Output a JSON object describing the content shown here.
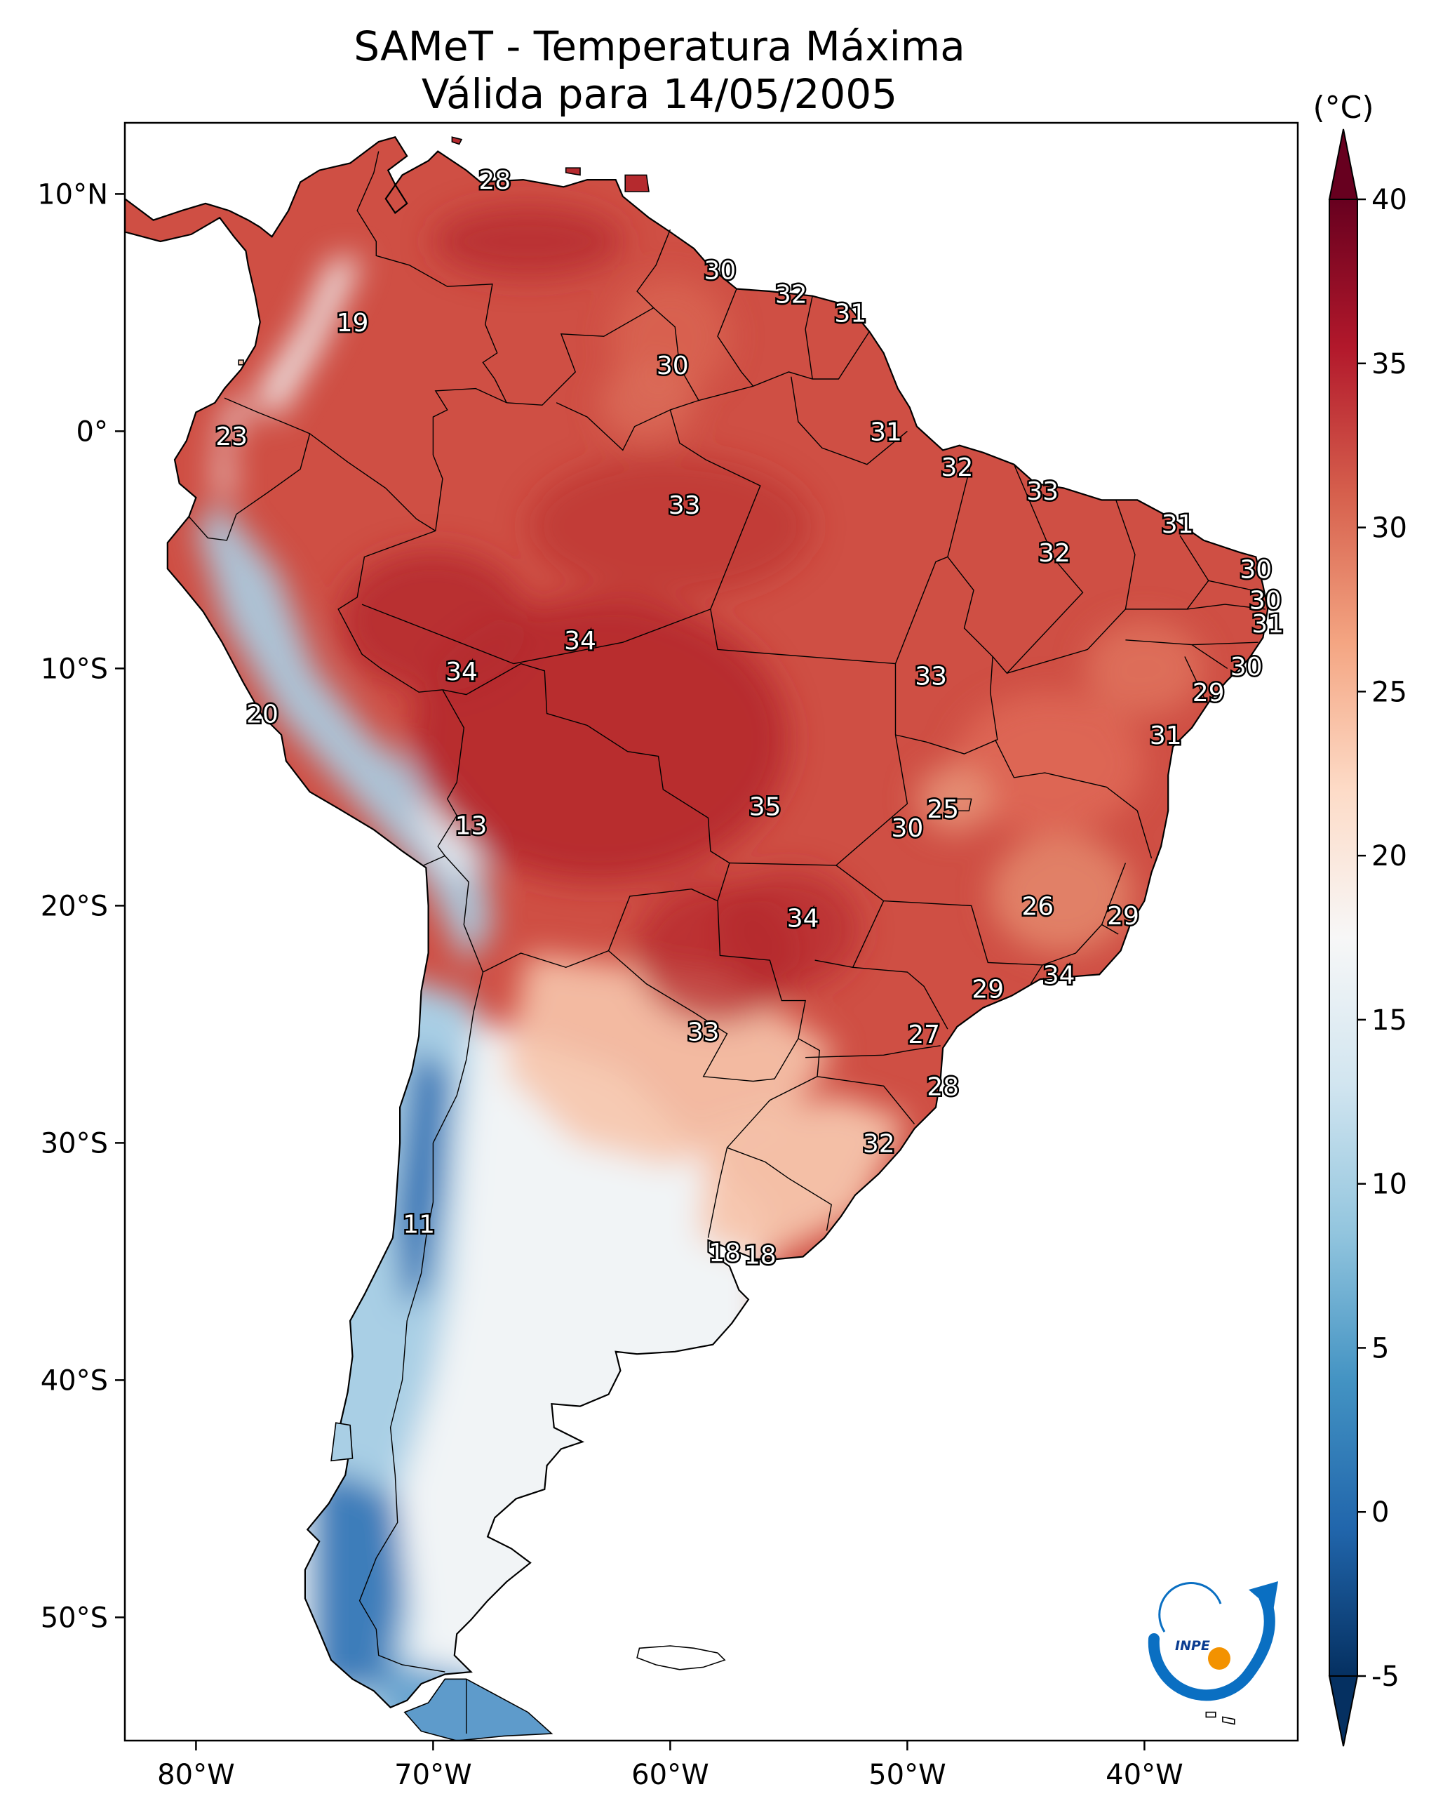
{
  "title": {
    "line1": "SAMeT - Temperatura Máxima",
    "line2": "Válida para 14/05/2005"
  },
  "colorbar": {
    "unit": "(°C)",
    "min": -5,
    "max": 40,
    "ticks": [
      "40",
      "35",
      "30",
      "25",
      "20",
      "15",
      "10",
      "5",
      "0",
      "-5"
    ],
    "colors": [
      "#053061",
      "#2166ac",
      "#4393c3",
      "#92c5de",
      "#d1e5f0",
      "#f7f7f7",
      "#fddbc7",
      "#f4a582",
      "#d6604d",
      "#b2182b",
      "#67001f"
    ]
  },
  "axes": {
    "lon_ticks": [
      "80°W",
      "70°W",
      "60°W",
      "50°W",
      "40°W"
    ],
    "lat_ticks": [
      "10°N",
      "0°",
      "10°S",
      "20°S",
      "30°S",
      "40°S",
      "50°S"
    ]
  },
  "labels": [
    {
      "lon": -67.4,
      "lat": 10.6,
      "text": "28"
    },
    {
      "lon": -57.9,
      "lat": 6.8,
      "text": "30"
    },
    {
      "lon": -54.9,
      "lat": 5.8,
      "text": "32"
    },
    {
      "lon": -52.4,
      "lat": 5.0,
      "text": "31"
    },
    {
      "lon": -73.4,
      "lat": 4.6,
      "text": "19"
    },
    {
      "lon": -59.9,
      "lat": 2.8,
      "text": "30"
    },
    {
      "lon": -78.5,
      "lat": -0.2,
      "text": "23"
    },
    {
      "lon": -50.9,
      "lat": 0.0,
      "text": "31"
    },
    {
      "lon": -47.9,
      "lat": -1.5,
      "text": "32"
    },
    {
      "lon": -44.3,
      "lat": -2.5,
      "text": "33"
    },
    {
      "lon": -59.4,
      "lat": -3.1,
      "text": "33"
    },
    {
      "lon": -38.6,
      "lat": -3.9,
      "text": "31"
    },
    {
      "lon": -43.8,
      "lat": -5.1,
      "text": "32"
    },
    {
      "lon": -35.3,
      "lat": -5.8,
      "text": "30"
    },
    {
      "lon": -34.9,
      "lat": -7.1,
      "text": "30"
    },
    {
      "lon": -34.8,
      "lat": -8.1,
      "text": "31"
    },
    {
      "lon": -63.8,
      "lat": -8.8,
      "text": "34"
    },
    {
      "lon": -68.8,
      "lat": -10.1,
      "text": "34"
    },
    {
      "lon": -49.0,
      "lat": -10.3,
      "text": "33"
    },
    {
      "lon": -35.7,
      "lat": -9.9,
      "text": "30"
    },
    {
      "lon": -37.3,
      "lat": -11.0,
      "text": "29"
    },
    {
      "lon": -77.2,
      "lat": -11.9,
      "text": "20"
    },
    {
      "lon": -39.1,
      "lat": -12.8,
      "text": "31"
    },
    {
      "lon": -56.0,
      "lat": -15.8,
      "text": "35"
    },
    {
      "lon": -48.5,
      "lat": -15.9,
      "text": "25"
    },
    {
      "lon": -50.0,
      "lat": -16.7,
      "text": "30"
    },
    {
      "lon": -68.4,
      "lat": -16.6,
      "text": "13"
    },
    {
      "lon": -44.5,
      "lat": -20.0,
      "text": "26"
    },
    {
      "lon": -40.9,
      "lat": -20.4,
      "text": "29"
    },
    {
      "lon": -54.4,
      "lat": -20.5,
      "text": "34"
    },
    {
      "lon": -43.6,
      "lat": -22.9,
      "text": "34"
    },
    {
      "lon": -46.6,
      "lat": -23.5,
      "text": "29"
    },
    {
      "lon": -58.6,
      "lat": -25.3,
      "text": "33"
    },
    {
      "lon": -49.3,
      "lat": -25.4,
      "text": "27"
    },
    {
      "lon": -48.5,
      "lat": -27.6,
      "text": "28"
    },
    {
      "lon": -51.2,
      "lat": -30.0,
      "text": "32"
    },
    {
      "lon": -70.6,
      "lat": -33.4,
      "text": "11"
    },
    {
      "lon": -57.7,
      "lat": -34.6,
      "text": "18"
    },
    {
      "lon": -56.2,
      "lat": -34.7,
      "text": "18"
    }
  ],
  "logo": {
    "text": "INPE",
    "colors": {
      "blue": "#0a6fc2",
      "orange": "#f39200"
    }
  },
  "palette": {
    "cold_core": "#2c6fb3",
    "cool": "#a9cfe5",
    "mild": "#f1f4f6",
    "warm": "#f6c5ac",
    "hot": "#cf4f44",
    "very_hot": "#b52a2e",
    "extreme": "#a11e29"
  }
}
